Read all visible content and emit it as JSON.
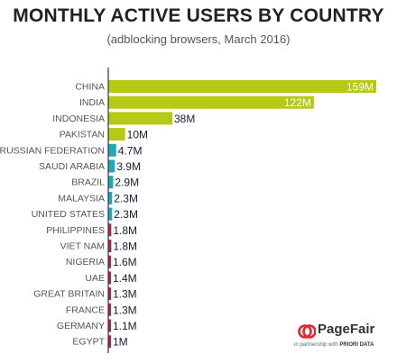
{
  "chart_data": {
    "type": "bar",
    "orientation": "horizontal",
    "title": "MONTHLY ACTIVE USERS BY COUNTRY",
    "subtitle": "(adblocking browsers, March 2016)",
    "unit": "M",
    "categories": [
      "CHINA",
      "INDIA",
      "INDONESIA",
      "PAKISTAN",
      "RUSSIAN FEDERATION",
      "SAUDI ARABIA",
      "BRAZIL",
      "MALAYSIA",
      "UNITED STATES",
      "PHILIPPINES",
      "VIET NAM",
      "NIGERIA",
      "UAE",
      "GREAT BRITAIN",
      "FRANCE",
      "GERMANY",
      "EGYPT"
    ],
    "values": [
      159,
      122,
      38,
      10,
      4.7,
      3.9,
      2.9,
      2.3,
      2.3,
      1.8,
      1.8,
      1.6,
      1.4,
      1.3,
      1.3,
      1.1,
      1
    ],
    "labels": [
      "159M",
      "122M",
      "38M",
      "10M",
      "4.7M",
      "3.9M",
      "2.9M",
      "2.3M",
      "2.3M",
      "1.8M",
      "1.8M",
      "1.6M",
      "1.4M",
      "1.3M",
      "1.3M",
      "1.1M",
      "1M"
    ],
    "colors": [
      "#b5c915",
      "#b5c915",
      "#b5c915",
      "#b5c915",
      "#1fa8bb",
      "#1fa8bb",
      "#1fa8bb",
      "#1fa8bb",
      "#1fa8bb",
      "#a8264f",
      "#a8264f",
      "#a8264f",
      "#a8264f",
      "#a8264f",
      "#a8264f",
      "#a8264f",
      "#a8264f"
    ],
    "xlim": [
      0,
      159
    ],
    "grid": false,
    "legend": "none"
  },
  "logo": {
    "name": "PageFair",
    "tagline_prefix": "in partnership with",
    "tagline_partner": "PRIORI DATA",
    "accent": "#e3262d"
  }
}
